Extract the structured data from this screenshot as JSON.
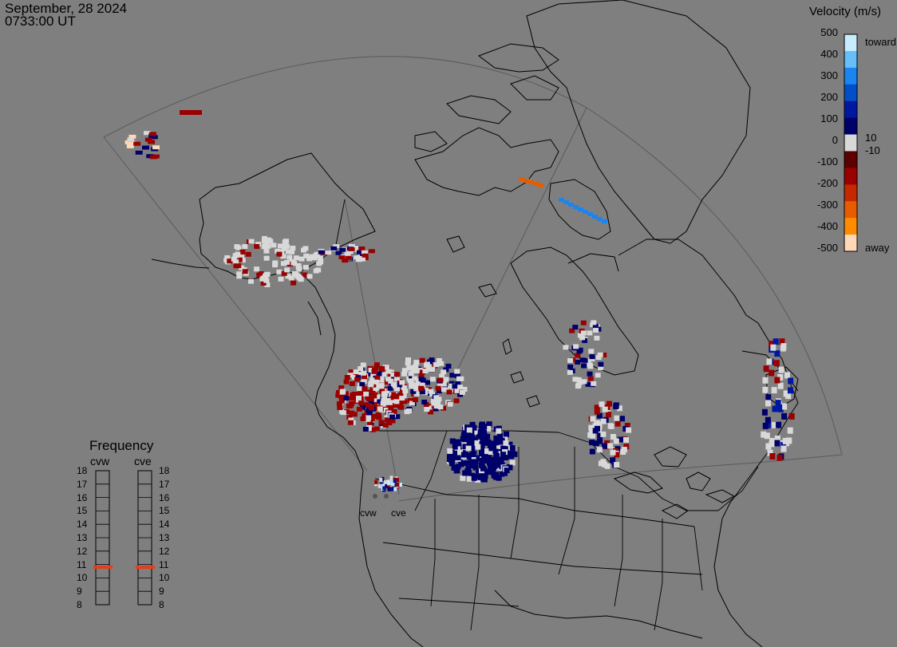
{
  "header": {
    "date": "September, 28 2024",
    "time": "0733:00 UT"
  },
  "velocity_scale": {
    "title": "Velocity (m/s)",
    "ticks": [
      "500",
      "400",
      "300",
      "200",
      "100",
      "0",
      "-100",
      "-200",
      "-300",
      "-400",
      "-500"
    ],
    "side_labels": {
      "toward": "toward",
      "ten": "10",
      "minus_ten": "-10",
      "away": "away"
    },
    "colors": [
      "#ffd8b8",
      "#ff8c00",
      "#e85c00",
      "#c62800",
      "#9a0000",
      "#5c0000",
      "#d8d8d8",
      "#00006a",
      "#0018a0",
      "#004ec8",
      "#1a84f0",
      "#66bff8",
      "#c8ecff"
    ]
  },
  "frequency": {
    "title": "Frequency",
    "radar_a": "cvw",
    "radar_b": "cve",
    "ticks": [
      "18",
      "17",
      "16",
      "15",
      "14",
      "13",
      "12",
      "11",
      "10",
      "9",
      "8"
    ],
    "value_a_mhz": 10.8,
    "value_b_mhz": 10.8,
    "indicator_color": "#e04020"
  },
  "radars": {
    "west": "cvw",
    "east": "cve"
  }
}
